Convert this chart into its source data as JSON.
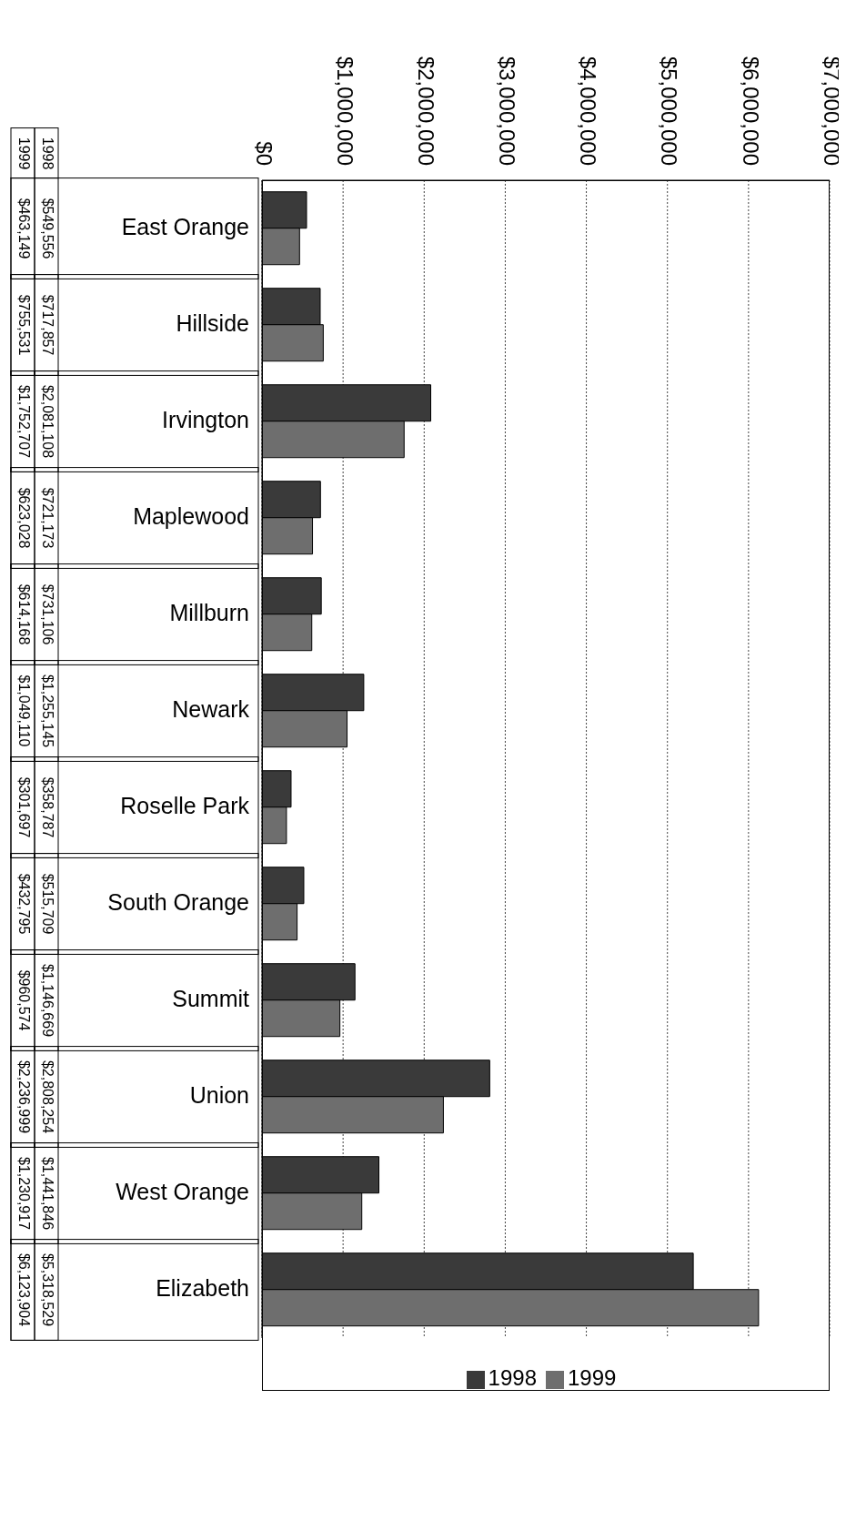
{
  "chart_data": {
    "type": "bar",
    "orientation": "horizontal",
    "categories": [
      "East Orange",
      "Hillside",
      "Irvington",
      "Maplewood",
      "Millburn",
      "Newark",
      "Roselle Park",
      "South Orange",
      "Summit",
      "Union",
      "West Orange",
      "Elizabeth"
    ],
    "series": [
      {
        "name": "1998",
        "color": "#3a3a3a",
        "values": [
          549556,
          717857,
          2081108,
          721173,
          731106,
          1255145,
          358787,
          515709,
          1146669,
          2808254,
          1441846,
          5318529
        ],
        "value_labels": [
          "$549,556",
          "$717,857",
          "$2,081,108",
          "$721,173",
          "$731,106",
          "$1,255,145",
          "$358,787",
          "$515,709",
          "$1,146,669",
          "$2,808,254",
          "$1,441,846",
          "$5,318,529"
        ]
      },
      {
        "name": "1999",
        "color": "#6e6e6e",
        "values": [
          463149,
          755531,
          1752707,
          623028,
          614168,
          1049110,
          301697,
          432795,
          960574,
          2236999,
          1230917,
          6123904
        ],
        "value_labels": [
          "$463,149",
          "$755,531",
          "$1,752,707",
          "$623,028",
          "$614,168",
          "$1,049,110",
          "$301,697",
          "$432,795",
          "$960,574",
          "$2,236,999",
          "$1,230,917",
          "$6,123,904"
        ]
      }
    ],
    "xlim": [
      0,
      7000000
    ],
    "xticks": [
      {
        "value": 0,
        "label": "$0"
      },
      {
        "value": 1000000,
        "label": "$1,000,000"
      },
      {
        "value": 2000000,
        "label": "$2,000,000"
      },
      {
        "value": 3000000,
        "label": "$3,000,000"
      },
      {
        "value": 4000000,
        "label": "$4,000,000"
      },
      {
        "value": 5000000,
        "label": "$5,000,000"
      },
      {
        "value": 6000000,
        "label": "$6,000,000"
      },
      {
        "value": 7000000,
        "label": "$7,000,000"
      }
    ],
    "grid": "x",
    "legend": "bottom"
  }
}
